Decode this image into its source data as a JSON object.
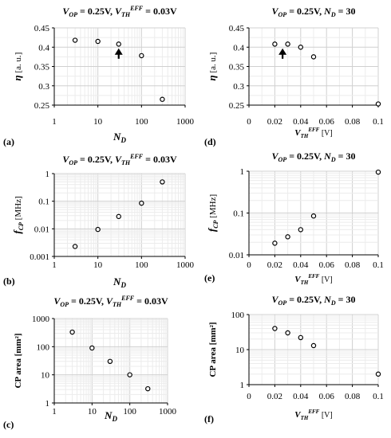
{
  "chart_data": [
    {
      "panel": "(a)",
      "type": "scatter",
      "title": "V_OP = 0.25V, V_TH^EFF = 0.03V",
      "title_parts": {
        "v_op": "V",
        "v_op_sub": "OP",
        "v_op_val": "=   0.25V,",
        "vth": "V",
        "vth_sub": "TH",
        "vth_sup": "EFF",
        "vth_val": " = 0.03V"
      },
      "xlabel": "N_D",
      "xlabel_main": "N",
      "xlabel_sub": "D",
      "ylabel": "η [a. u.]",
      "x_scale": "log",
      "xlim": [
        1,
        1000
      ],
      "x_ticks": [
        "1",
        "10",
        "100",
        "1000"
      ],
      "y_scale": "linear",
      "ylim": [
        0.25,
        0.45
      ],
      "y_ticks": [
        "0.25",
        "0.3",
        "0.35",
        "0.4",
        "0.45"
      ],
      "grid": true,
      "points": [
        [
          3,
          0.418
        ],
        [
          10,
          0.415
        ],
        [
          30,
          0.408
        ],
        [
          100,
          0.378
        ],
        [
          300,
          0.265
        ]
      ],
      "annotation": {
        "type": "arrow-up",
        "x": 30,
        "y_tip": 0.397,
        "y_tail": 0.37
      }
    },
    {
      "panel": "(d)",
      "type": "scatter",
      "title": "V_OP = 0.25V, N_D = 30",
      "title_parts": {
        "v_op": "V",
        "v_op_sub": "OP",
        "v_op_val": "=   0.25V,",
        "nd": "N",
        "nd_sub": "D",
        "nd_val": " = 30"
      },
      "xlabel": "V_TH^EFF [V]",
      "xlabel_main": "V",
      "xlabel_sub": "TH",
      "xlabel_sup": "EFF",
      "xlabel_unit": " [V]",
      "ylabel": "η [a. u.]",
      "x_scale": "linear",
      "xlim": [
        0,
        0.1
      ],
      "x_ticks": [
        "0",
        "0.02",
        "0.04",
        "0.06",
        "0.08",
        "0.1"
      ],
      "y_scale": "linear",
      "ylim": [
        0.25,
        0.45
      ],
      "y_ticks": [
        "0.25",
        "0.3",
        "0.35",
        "0.4",
        "0.45"
      ],
      "grid": true,
      "points": [
        [
          0.02,
          0.408
        ],
        [
          0.03,
          0.408
        ],
        [
          0.04,
          0.4
        ],
        [
          0.05,
          0.375
        ],
        [
          0.1,
          0.253
        ]
      ],
      "annotation": {
        "type": "arrow-up",
        "x": 0.026,
        "y_tip": 0.397,
        "y_tail": 0.37
      }
    },
    {
      "panel": "(b)",
      "type": "scatter",
      "title": "V_OP = 0.25V, V_TH^EFF = 0.03V",
      "title_parts": {
        "v_op": "V",
        "v_op_sub": "OP",
        "v_op_val": "=   0.25V,",
        "vth": "V",
        "vth_sub": "TH",
        "vth_sup": "EFF",
        "vth_val": " = 0.03V"
      },
      "xlabel": "N_D",
      "xlabel_main": "N",
      "xlabel_sub": "D",
      "ylabel": "f_CP [MHz]",
      "x_scale": "log",
      "xlim": [
        1,
        1000
      ],
      "x_ticks": [
        "1",
        "10",
        "100",
        "1000"
      ],
      "y_scale": "log",
      "ylim": [
        0.001,
        1
      ],
      "y_ticks": [
        "0.001",
        "0.01",
        "0.1",
        "1"
      ],
      "grid": true,
      "points": [
        [
          3,
          0.0023
        ],
        [
          10,
          0.0095
        ],
        [
          30,
          0.028
        ],
        [
          100,
          0.085
        ],
        [
          300,
          0.5
        ]
      ]
    },
    {
      "panel": "(e)",
      "type": "scatter",
      "title": "V_OP = 0.25V, N_D = 30",
      "title_parts": {
        "v_op": "V",
        "v_op_sub": "OP",
        "v_op_val": "=   0.25V,",
        "nd": "N",
        "nd_sub": "D",
        "nd_val": " = 30"
      },
      "xlabel": "V_TH^EFF [V]",
      "xlabel_main": "V",
      "xlabel_sub": "TH",
      "xlabel_sup": "EFF",
      "xlabel_unit": " [V]",
      "ylabel": "f_CP [MHz]",
      "x_scale": "linear",
      "xlim": [
        0,
        0.1
      ],
      "x_ticks": [
        "0",
        "0.02",
        "0.04",
        "0.06",
        "0.08",
        "0.1"
      ],
      "y_scale": "log",
      "ylim": [
        0.01,
        1
      ],
      "y_ticks": [
        "0.01",
        "0.1",
        "1"
      ],
      "grid": true,
      "points": [
        [
          0.02,
          0.019
        ],
        [
          0.03,
          0.027
        ],
        [
          0.04,
          0.04
        ],
        [
          0.05,
          0.085
        ],
        [
          0.1,
          0.95
        ]
      ]
    },
    {
      "panel": "(c)",
      "type": "scatter",
      "title": "V_OP = 0.25V, V_TH^EFF = 0.03V",
      "title_parts": {
        "v_op": "V",
        "v_op_sub": "OP",
        "v_op_val": "=   0.25V,",
        "vth": "V",
        "vth_sub": "TH",
        "vth_sup": "EFF",
        "vth_val": " = 0.03V"
      },
      "xlabel": "N_D",
      "xlabel_main": "N",
      "xlabel_sub": "D",
      "ylabel": "CP area [mm²]",
      "x_scale": "log",
      "xlim": [
        1,
        1000
      ],
      "x_ticks": [
        "1",
        "10",
        "100",
        "1000"
      ],
      "y_scale": "log",
      "ylim": [
        1,
        1000
      ],
      "y_ticks": [
        "1",
        "10",
        "100",
        "1000"
      ],
      "grid": true,
      "points": [
        [
          3,
          330
        ],
        [
          10,
          90
        ],
        [
          30,
          30
        ],
        [
          100,
          10
        ],
        [
          300,
          3.2
        ]
      ]
    },
    {
      "panel": "(f)",
      "type": "scatter",
      "title": "V_OP = 0.25V, N_D = 30",
      "title_parts": {
        "v_op": "V",
        "v_op_sub": "OP",
        "v_op_val": "=   0.25V,",
        "nd": "N",
        "nd_sub": "D",
        "nd_val": " = 30"
      },
      "xlabel": "V_TH^EFF [V]",
      "xlabel_main": "V",
      "xlabel_sub": "TH",
      "xlabel_sup": "EFF",
      "xlabel_unit": " [V]",
      "ylabel": "CP area [mm²]",
      "x_scale": "linear",
      "xlim": [
        0,
        0.1
      ],
      "x_ticks": [
        "0",
        "0.02",
        "0.04",
        "0.06",
        "0.08",
        "0.1"
      ],
      "y_scale": "log",
      "ylim": [
        1,
        100
      ],
      "y_ticks": [
        "1",
        "10",
        "100"
      ],
      "grid": true,
      "points": [
        [
          0.02,
          40
        ],
        [
          0.03,
          30
        ],
        [
          0.04,
          22
        ],
        [
          0.05,
          13
        ],
        [
          0.1,
          2
        ]
      ]
    }
  ],
  "colors": {
    "marker_stroke": "#000000",
    "marker_fill": "#ffffff",
    "grid_major": "#d0d0d0",
    "grid_minor": "#ececec",
    "axis": "#000000"
  }
}
